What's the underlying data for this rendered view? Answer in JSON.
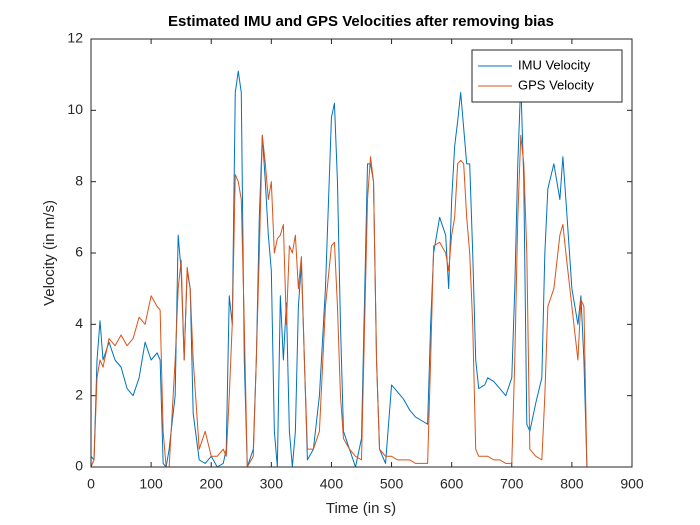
{
  "chart_data": {
    "type": "line",
    "title": "Estimated IMU and GPS Velocities after removing bias",
    "x_label": "Time (in s)",
    "y_label": "Velocity (in m/s)",
    "x": [
      0,
      5,
      10,
      15,
      20,
      30,
      40,
      50,
      60,
      70,
      80,
      90,
      100,
      110,
      115,
      120,
      125,
      130,
      140,
      145,
      150,
      155,
      160,
      165,
      170,
      180,
      190,
      200,
      210,
      220,
      225,
      230,
      235,
      240,
      245,
      250,
      255,
      260,
      270,
      275,
      280,
      285,
      290,
      295,
      300,
      305,
      310,
      315,
      320,
      325,
      330,
      335,
      340,
      345,
      350,
      355,
      360,
      370,
      380,
      390,
      400,
      405,
      410,
      415,
      420,
      430,
      440,
      450,
      460,
      465,
      470,
      475,
      480,
      490,
      500,
      510,
      520,
      530,
      540,
      550,
      560,
      565,
      570,
      580,
      590,
      595,
      600,
      605,
      610,
      615,
      620,
      625,
      630,
      635,
      640,
      645,
      655,
      660,
      670,
      680,
      690,
      700,
      705,
      710,
      715,
      720,
      725,
      730,
      740,
      750,
      755,
      760,
      770,
      780,
      785,
      790,
      800,
      810,
      815,
      820,
      825,
      830
    ],
    "series": [
      {
        "name": "IMU Velocity",
        "color": "#0072BD",
        "values": [
          0.3,
          0.2,
          3.0,
          4.1,
          3.0,
          3.5,
          3.0,
          2.8,
          2.2,
          2.0,
          2.5,
          3.5,
          3.0,
          3.2,
          3.0,
          0.1,
          0,
          0.5,
          2,
          6.5,
          5.5,
          3,
          5.5,
          5,
          1.5,
          0.2,
          0.1,
          0.3,
          0,
          0.1,
          0.5,
          4.8,
          4,
          10.5,
          11.1,
          10.5,
          3,
          0,
          0.5,
          3,
          7,
          9.3,
          8,
          6.5,
          5.5,
          1,
          0,
          4.8,
          3,
          4.6,
          1,
          0,
          1,
          4.5,
          5.7,
          3,
          0.2,
          0.5,
          2,
          5,
          9.8,
          10.2,
          8,
          4,
          1,
          0.5,
          0,
          0.8,
          8.5,
          8.5,
          8.0,
          3,
          0.5,
          0.1,
          2.3,
          2.1,
          1.9,
          1.6,
          1.4,
          1.3,
          1.2,
          4,
          6.0,
          7.0,
          6.5,
          5,
          7.5,
          9,
          9.7,
          10.5,
          9.5,
          8.5,
          8.5,
          6,
          3,
          2.2,
          2.3,
          2.5,
          2.4,
          2.2,
          2.0,
          2.5,
          5,
          8.5,
          10.8,
          8,
          1.2,
          1,
          1.8,
          2.5,
          6,
          7.8,
          8.5,
          7.5,
          8.7,
          7.5,
          5,
          4,
          4.8,
          3,
          0,
          0
        ]
      },
      {
        "name": "GPS Velocity",
        "color": "#D95319",
        "values": [
          0,
          0.2,
          2.5,
          3,
          2.8,
          3.6,
          3.4,
          3.7,
          3.4,
          3.6,
          4.2,
          4.0,
          4.8,
          4.5,
          4.4,
          1,
          0,
          0,
          3,
          5.0,
          5.8,
          3,
          5.6,
          5,
          3,
          0.5,
          1.0,
          0.3,
          0.3,
          0.5,
          0.3,
          2,
          4,
          8.2,
          8,
          7.5,
          4,
          0,
          0.3,
          3,
          6,
          9.3,
          8.5,
          7.5,
          8.0,
          6,
          6.4,
          6.5,
          6.8,
          4,
          6.2,
          6,
          6.5,
          5,
          5.9,
          3,
          0.5,
          0.5,
          1,
          4.5,
          6.2,
          6.3,
          4.5,
          2,
          0.8,
          0.5,
          0.3,
          0.2,
          7.5,
          8.7,
          8,
          3,
          0.5,
          0.3,
          0.3,
          0.2,
          0.2,
          0.2,
          0.1,
          0.1,
          0.1,
          3,
          6.2,
          6.3,
          6.0,
          5.5,
          6.5,
          7,
          8.5,
          8.6,
          8.5,
          7,
          6,
          4,
          0.5,
          0.3,
          0.3,
          0.3,
          0.2,
          0.2,
          0.1,
          0.1,
          3,
          7,
          9.3,
          8.5,
          6,
          0.5,
          0.3,
          0.2,
          2,
          4.5,
          5,
          6.5,
          6.8,
          6,
          4.5,
          3,
          4.7,
          4.5,
          0,
          0
        ]
      }
    ],
    "xlim": [
      0,
      900
    ],
    "xticks": [
      0,
      100,
      200,
      300,
      400,
      500,
      600,
      700,
      800,
      900
    ],
    "ylim": [
      0,
      12
    ],
    "yticks": [
      0,
      2,
      4,
      6,
      8,
      10,
      12
    ],
    "grid": false,
    "legend_position": "upper right"
  }
}
